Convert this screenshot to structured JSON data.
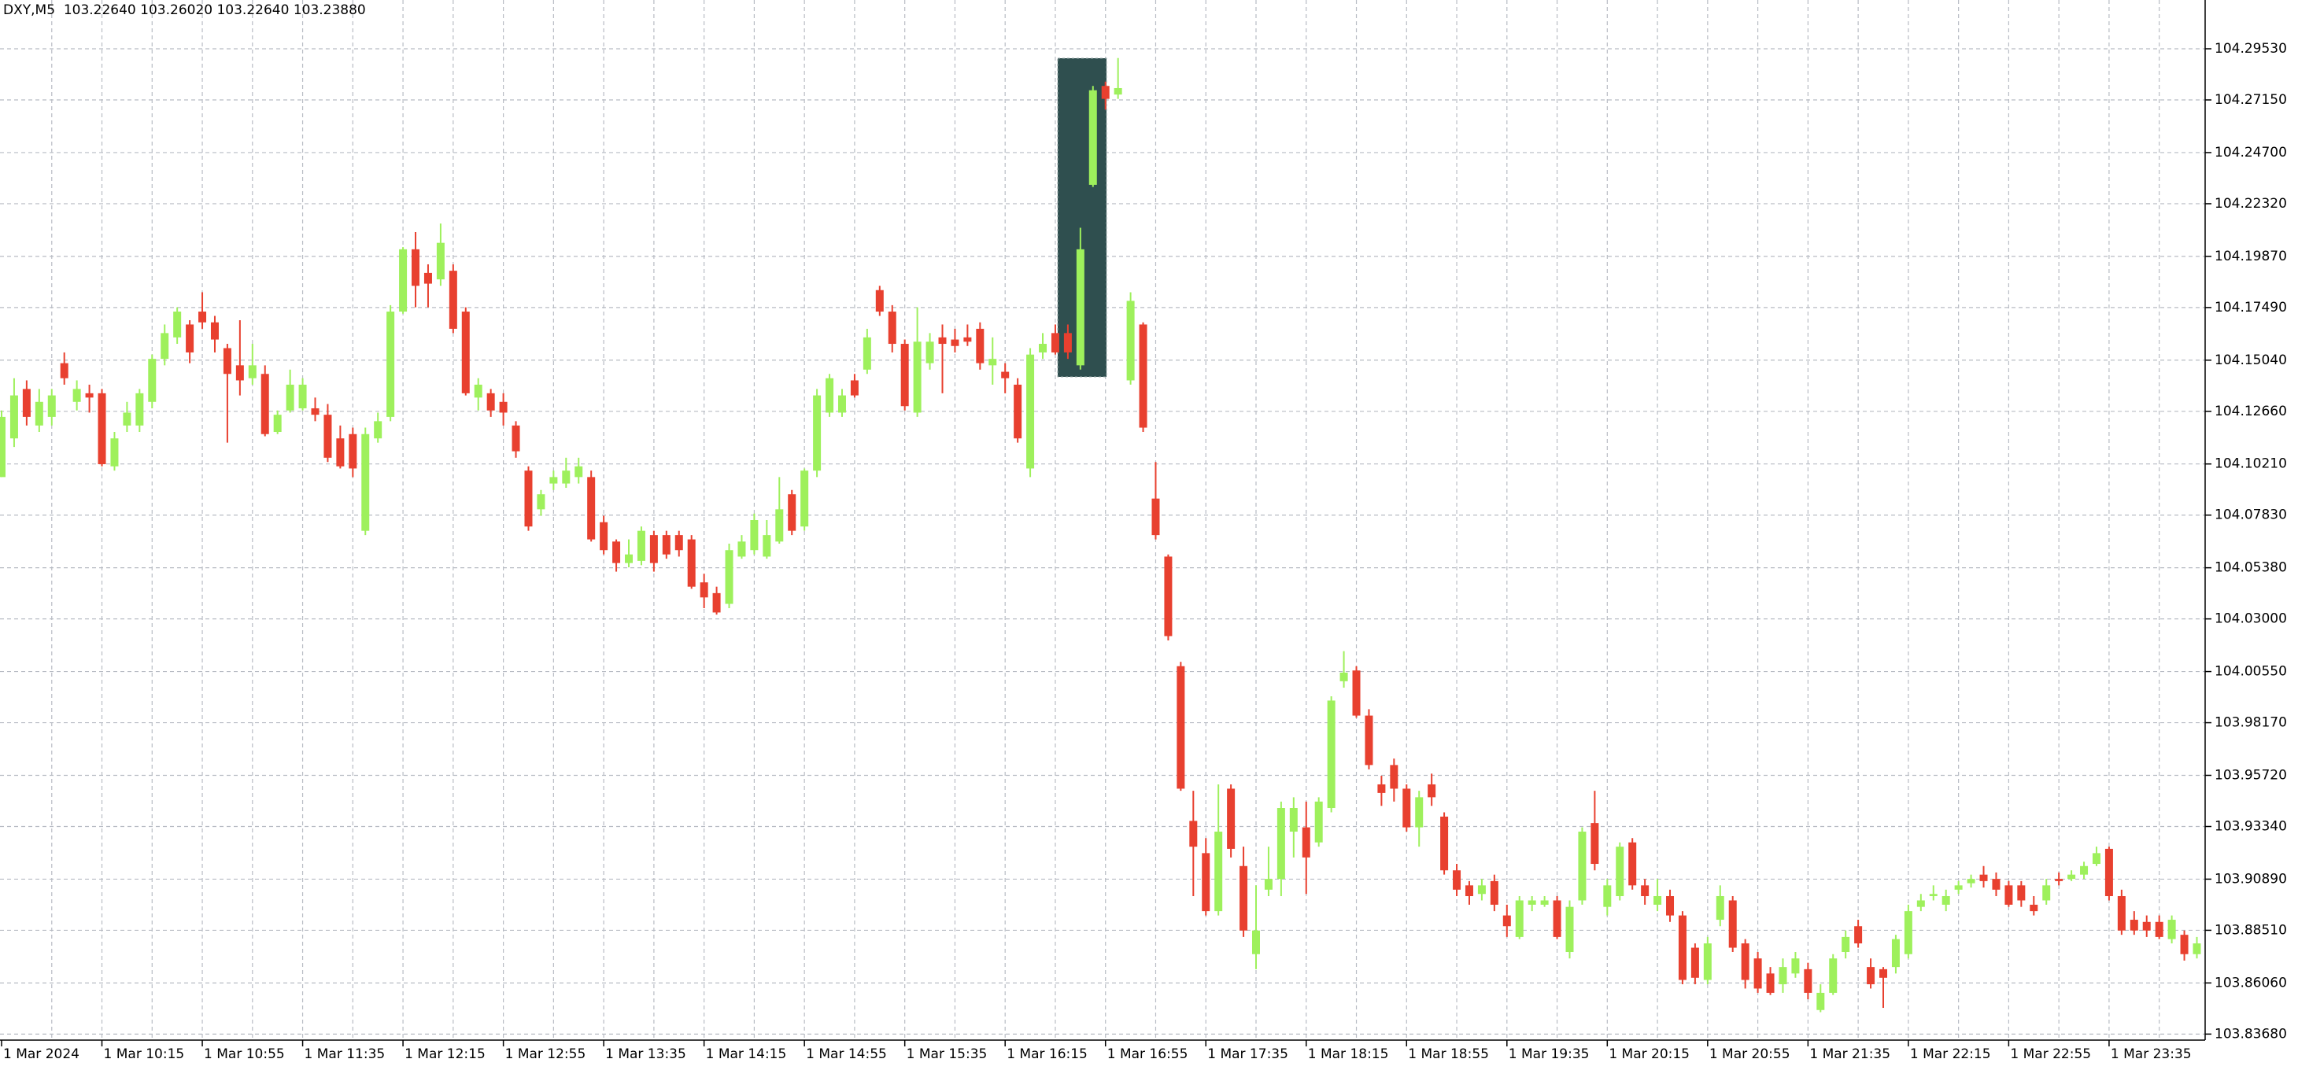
{
  "chart_data": {
    "type": "candlestick",
    "title": "DXY,M5  103.22640 103.26020 103.22640 103.23880",
    "categories": [
      "1 Mar 2024",
      null,
      null,
      null,
      null,
      null,
      null,
      null,
      "1 Mar 10:15",
      null,
      null,
      null,
      null,
      null,
      null,
      null,
      "1 Mar 10:55",
      null,
      null,
      null,
      null,
      null,
      null,
      null,
      "1 Mar 11:35",
      null,
      null,
      null,
      null,
      null,
      null,
      null,
      "1 Mar 12:15",
      null,
      null,
      null,
      null,
      null,
      null,
      null,
      "1 Mar 12:55",
      null,
      null,
      null,
      null,
      null,
      null,
      null,
      "1 Mar 13:35",
      null,
      null,
      null,
      null,
      null,
      null,
      null,
      "1 Mar 14:15",
      null,
      null,
      null,
      null,
      null,
      null,
      null,
      "1 Mar 14:55",
      null,
      null,
      null,
      null,
      null,
      null,
      null,
      "1 Mar 15:35",
      null,
      null,
      null,
      null,
      null,
      null,
      null,
      "1 Mar 16:15",
      null,
      null,
      null,
      null,
      null,
      null,
      null,
      "1 Mar 16:55",
      null,
      null,
      null,
      null,
      null,
      null,
      null,
      "1 Mar 17:35",
      null,
      null,
      null,
      null,
      null,
      null,
      null,
      "1 Mar 18:15",
      null,
      null,
      null,
      null,
      null,
      null,
      null,
      "1 Mar 18:55",
      null,
      null,
      null,
      null,
      null,
      null,
      null,
      "1 Mar 19:35",
      null,
      null,
      null,
      null,
      null,
      null,
      null,
      "1 Mar 20:15",
      null,
      null,
      null,
      null,
      null,
      null,
      null,
      "1 Mar 20:55",
      null,
      null,
      null,
      null,
      null,
      null,
      null,
      "1 Mar 21:35",
      null,
      null,
      null,
      null,
      null,
      null,
      null,
      "1 Mar 22:15",
      null,
      null,
      null,
      null,
      null,
      null,
      null,
      "1 Mar 22:55",
      null,
      null,
      null,
      null,
      null,
      null,
      null,
      "1 Mar 23:35",
      null,
      null,
      null,
      null,
      null,
      null,
      null
    ],
    "open": [
      104.096,
      104.114,
      104.137,
      104.12,
      104.124,
      104.149,
      104.131,
      104.135,
      104.135,
      104.101,
      104.12,
      104.12,
      104.131,
      104.151,
      104.161,
      104.167,
      104.173,
      104.168,
      104.156,
      104.148,
      104.142,
      104.144,
      104.117,
      104.127,
      104.128,
      104.128,
      104.125,
      104.114,
      104.116,
      104.071,
      104.114,
      104.124,
      104.173,
      104.202,
      104.191,
      104.188,
      104.192,
      104.173,
      104.133,
      104.135,
      104.131,
      104.12,
      104.099,
      104.081,
      104.093,
      104.093,
      104.096,
      104.096,
      104.075,
      104.066,
      104.056,
      104.057,
      104.069,
      104.069,
      104.069,
      104.067,
      104.047,
      104.042,
      104.037,
      104.059,
      104.062,
      104.059,
      104.066,
      104.088,
      104.073,
      104.099,
      104.126,
      104.126,
      104.141,
      104.146,
      104.183,
      104.173,
      104.158,
      104.126,
      104.149,
      104.161,
      104.16,
      104.161,
      104.165,
      104.148,
      104.145,
      104.139,
      104.1,
      104.154,
      104.163,
      104.163,
      104.148,
      104.232,
      104.278,
      104.274,
      104.141,
      104.167,
      104.086,
      104.059,
      104.008,
      103.936,
      103.921,
      103.894,
      103.951,
      103.915,
      103.874,
      103.904,
      103.909,
      103.931,
      103.933,
      103.926,
      103.942,
      104.001,
      104.006,
      103.985,
      103.953,
      103.962,
      103.951,
      103.933,
      103.953,
      103.938,
      103.913,
      103.906,
      103.902,
      103.908,
      103.892,
      103.882,
      103.897,
      103.897,
      103.899,
      103.875,
      103.899,
      103.935,
      103.896,
      103.901,
      103.926,
      103.906,
      103.897,
      103.901,
      103.892,
      103.877,
      103.862,
      103.89,
      103.899,
      103.879,
      103.872,
      103.865,
      103.86,
      103.865,
      103.867,
      103.848,
      103.856,
      103.875,
      103.887,
      103.868,
      103.867,
      103.868,
      103.874,
      103.896,
      103.901,
      103.897,
      103.904,
      103.907,
      103.911,
      103.909,
      103.906,
      103.906,
      103.897,
      103.899,
      103.909,
      103.909,
      103.911,
      103.916,
      103.923,
      103.901,
      103.89,
      103.889,
      103.889,
      103.881,
      103.883,
      103.874
    ],
    "high": [
      104.127,
      104.142,
      104.141,
      104.137,
      104.137,
      104.154,
      104.141,
      104.139,
      104.137,
      104.117,
      104.131,
      104.137,
      104.153,
      104.167,
      104.175,
      104.169,
      104.182,
      104.171,
      104.158,
      104.169,
      104.158,
      104.148,
      104.127,
      104.146,
      104.142,
      104.133,
      104.13,
      104.12,
      104.119,
      104.119,
      104.126,
      104.176,
      104.203,
      104.21,
      104.195,
      104.214,
      104.195,
      104.175,
      104.142,
      104.137,
      104.135,
      104.122,
      104.101,
      104.09,
      104.099,
      104.105,
      104.105,
      104.099,
      104.078,
      104.067,
      104.067,
      104.073,
      104.071,
      104.071,
      104.071,
      104.069,
      104.051,
      104.045,
      104.065,
      104.069,
      104.079,
      104.076,
      104.096,
      104.09,
      104.1,
      104.137,
      104.144,
      104.137,
      104.144,
      104.165,
      104.185,
      104.176,
      104.16,
      104.175,
      104.163,
      104.167,
      104.165,
      104.167,
      104.168,
      104.161,
      104.149,
      104.142,
      104.156,
      104.163,
      104.167,
      104.167,
      104.212,
      104.278,
      104.28,
      104.291,
      104.182,
      104.168,
      104.103,
      104.06,
      104.01,
      103.95,
      103.928,
      103.953,
      103.953,
      103.924,
      103.906,
      103.924,
      103.945,
      103.947,
      103.945,
      103.947,
      103.994,
      104.015,
      104.008,
      103.988,
      103.957,
      103.965,
      103.953,
      103.95,
      103.958,
      103.94,
      103.916,
      103.908,
      103.909,
      103.911,
      103.897,
      103.901,
      103.901,
      103.901,
      103.901,
      103.899,
      103.933,
      103.95,
      103.909,
      103.926,
      103.928,
      103.909,
      103.909,
      103.904,
      103.894,
      103.879,
      103.882,
      103.906,
      103.901,
      103.881,
      103.875,
      103.868,
      103.872,
      103.875,
      103.87,
      103.86,
      103.874,
      103.885,
      103.89,
      103.872,
      103.868,
      103.883,
      103.897,
      103.902,
      103.906,
      103.904,
      103.908,
      103.911,
      103.915,
      103.912,
      103.908,
      103.908,
      103.901,
      103.909,
      103.912,
      103.913,
      103.917,
      103.924,
      103.924,
      103.904,
      103.894,
      103.892,
      103.892,
      103.892,
      103.885,
      103.882
    ],
    "low": [
      104.096,
      104.11,
      104.12,
      104.117,
      104.12,
      104.139,
      104.127,
      104.126,
      104.101,
      104.099,
      104.117,
      104.117,
      104.128,
      104.148,
      104.158,
      104.149,
      104.165,
      104.154,
      104.112,
      104.134,
      104.139,
      104.115,
      104.116,
      104.126,
      104.127,
      104.122,
      104.103,
      104.1,
      104.096,
      104.069,
      104.112,
      104.122,
      104.172,
      104.175,
      104.175,
      104.185,
      104.163,
      104.134,
      104.127,
      104.124,
      104.12,
      104.105,
      104.071,
      104.078,
      104.09,
      104.091,
      104.093,
      104.066,
      104.06,
      104.052,
      104.054,
      104.055,
      104.052,
      104.058,
      104.059,
      104.044,
      104.035,
      104.032,
      104.035,
      104.058,
      104.06,
      104.058,
      104.065,
      104.069,
      104.071,
      104.096,
      104.124,
      104.124,
      104.133,
      104.144,
      104.171,
      104.154,
      104.127,
      104.124,
      104.146,
      104.135,
      104.154,
      104.157,
      104.146,
      104.139,
      104.135,
      104.112,
      104.096,
      104.151,
      104.153,
      104.151,
      104.146,
      104.231,
      104.267,
      104.272,
      104.139,
      104.117,
      104.067,
      104.02,
      103.95,
      103.901,
      103.892,
      103.892,
      103.919,
      103.882,
      103.867,
      103.901,
      103.901,
      103.919,
      103.902,
      103.924,
      103.94,
      103.998,
      103.984,
      103.96,
      103.943,
      103.945,
      103.931,
      103.924,
      103.943,
      103.911,
      103.901,
      103.897,
      103.899,
      103.894,
      103.882,
      103.881,
      103.894,
      103.896,
      103.881,
      103.872,
      103.897,
      103.913,
      103.892,
      103.899,
      103.904,
      103.897,
      103.894,
      103.889,
      103.86,
      103.86,
      103.86,
      103.887,
      103.875,
      103.858,
      103.856,
      103.855,
      103.856,
      103.863,
      103.853,
      103.847,
      103.855,
      103.872,
      103.877,
      103.858,
      103.849,
      103.865,
      103.872,
      103.894,
      103.899,
      103.894,
      103.902,
      103.905,
      103.905,
      103.901,
      103.896,
      103.896,
      103.892,
      103.897,
      103.906,
      103.908,
      103.909,
      103.915,
      103.899,
      103.883,
      103.883,
      103.882,
      103.881,
      103.879,
      103.871,
      103.872
    ],
    "close": [
      104.124,
      104.134,
      104.124,
      104.131,
      104.134,
      104.142,
      104.137,
      104.133,
      104.102,
      104.114,
      104.126,
      104.135,
      104.151,
      104.163,
      104.173,
      104.154,
      104.168,
      104.16,
      104.144,
      104.141,
      104.148,
      104.116,
      104.125,
      104.139,
      104.139,
      104.125,
      104.105,
      104.101,
      104.1,
      104.116,
      104.122,
      104.173,
      104.202,
      104.185,
      104.186,
      104.205,
      104.165,
      104.135,
      104.139,
      104.127,
      104.126,
      104.108,
      104.073,
      104.088,
      104.096,
      104.099,
      104.101,
      104.067,
      104.062,
      104.056,
      104.06,
      104.071,
      104.056,
      104.06,
      104.062,
      104.045,
      104.04,
      104.033,
      104.062,
      104.066,
      104.076,
      104.069,
      104.081,
      104.071,
      104.099,
      104.134,
      104.142,
      104.134,
      104.134,
      104.161,
      104.173,
      104.158,
      104.129,
      104.159,
      104.159,
      104.158,
      104.157,
      104.159,
      104.149,
      104.151,
      104.142,
      104.114,
      104.153,
      104.158,
      104.154,
      104.154,
      104.202,
      104.276,
      104.272,
      104.277,
      104.178,
      104.119,
      104.069,
      104.022,
      103.951,
      103.924,
      103.894,
      103.931,
      103.923,
      103.885,
      103.885,
      103.909,
      103.942,
      103.942,
      103.919,
      103.945,
      103.992,
      104.005,
      103.985,
      103.962,
      103.949,
      103.951,
      103.933,
      103.947,
      103.947,
      103.913,
      103.904,
      103.901,
      103.906,
      103.897,
      103.887,
      103.899,
      103.899,
      103.899,
      103.882,
      103.896,
      103.931,
      103.916,
      103.906,
      103.924,
      103.906,
      103.901,
      103.901,
      103.892,
      103.862,
      103.863,
      103.879,
      103.901,
      103.877,
      103.862,
      103.858,
      103.856,
      103.868,
      103.872,
      103.856,
      103.856,
      103.872,
      103.882,
      103.879,
      103.86,
      103.863,
      103.881,
      103.894,
      103.899,
      103.902,
      103.901,
      103.906,
      103.909,
      103.908,
      103.904,
      103.897,
      103.899,
      103.894,
      103.906,
      103.908,
      103.911,
      103.915,
      103.921,
      103.901,
      103.885,
      103.885,
      103.885,
      103.882,
      103.89,
      103.874,
      103.879
    ],
    "up_color": "#9ef05c",
    "down_color": "#e8402f",
    "ylim": [
      103.834,
      104.318
    ],
    "yticks": [
      {
        "value": 104.2953,
        "label": "104.29530"
      },
      {
        "value": 104.2715,
        "label": "104.27150"
      },
      {
        "value": 104.247,
        "label": "104.24700"
      },
      {
        "value": 104.2232,
        "label": "104.22320"
      },
      {
        "value": 104.1987,
        "label": "104.19870"
      },
      {
        "value": 104.1749,
        "label": "104.17490"
      },
      {
        "value": 104.1504,
        "label": "104.15040"
      },
      {
        "value": 104.1266,
        "label": "104.12660"
      },
      {
        "value": 104.1021,
        "label": "104.10210"
      },
      {
        "value": 104.0783,
        "label": "104.07830"
      },
      {
        "value": 104.0538,
        "label": "104.05380"
      },
      {
        "value": 104.03,
        "label": "104.03000"
      },
      {
        "value": 104.0055,
        "label": "104.00550"
      },
      {
        "value": 103.9817,
        "label": "103.98170"
      },
      {
        "value": 103.9572,
        "label": "103.95720"
      },
      {
        "value": 103.9334,
        "label": "103.93340"
      },
      {
        "value": 103.9089,
        "label": "103.90890"
      },
      {
        "value": 103.8851,
        "label": "103.88510"
      },
      {
        "value": 103.8606,
        "label": "103.86060"
      },
      {
        "value": 103.8368,
        "label": "103.83680"
      }
    ],
    "grid": true
  }
}
